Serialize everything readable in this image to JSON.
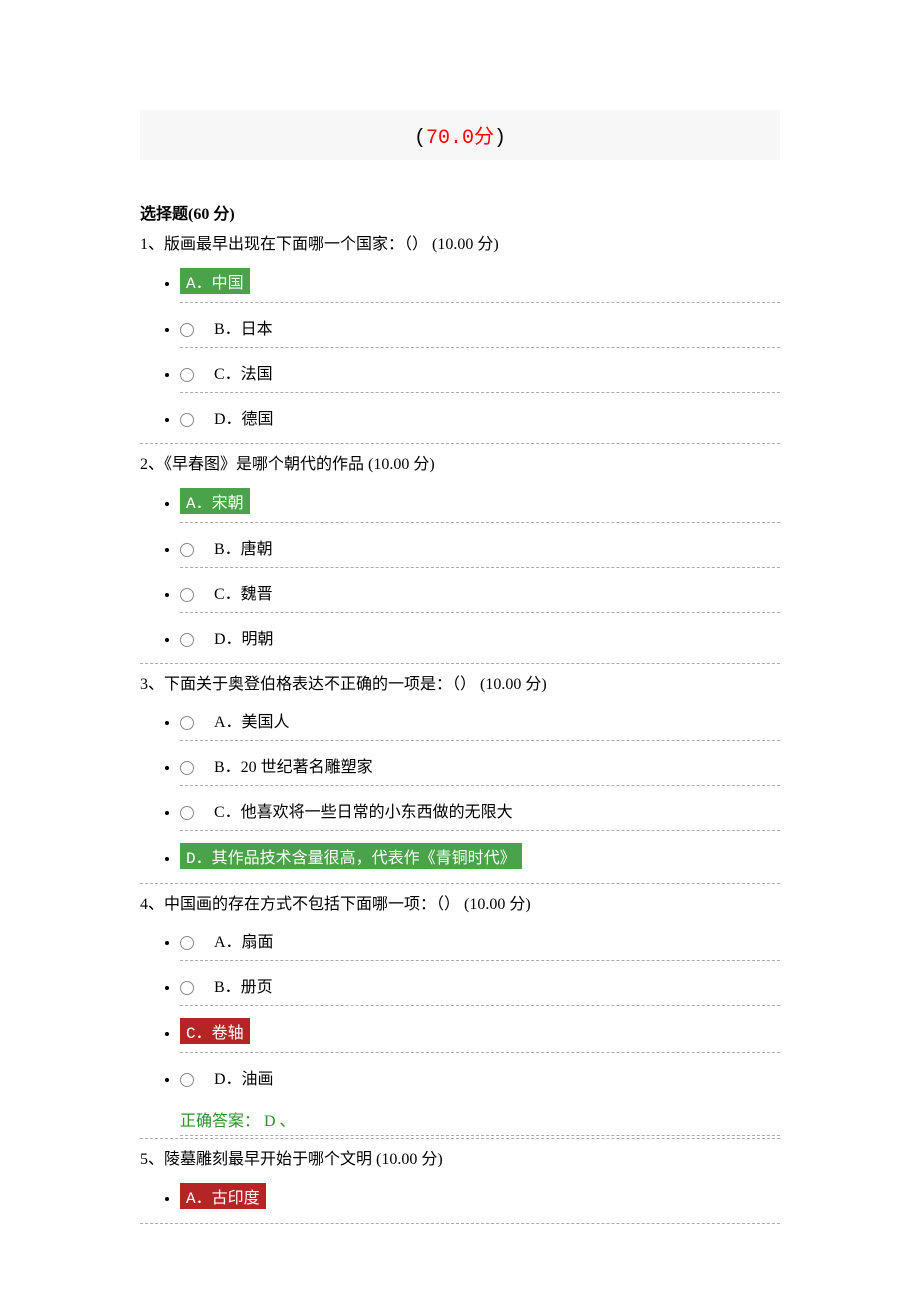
{
  "banner": {
    "open_paren": "(",
    "score": "70.0",
    "fen": "分",
    "close_paren": ")"
  },
  "section_title": "选择题(60 分)",
  "correct_answer_prefix": "正确答案：",
  "colors": {
    "banner_bg": "#f7f7f7",
    "score_color": "#ff0000",
    "green_hl": "#4aa24a",
    "red_hl": "#b52525",
    "correct_text": "#2f8f2f",
    "dash_border": "#aaaaaa"
  },
  "questions": [
    {
      "number": "1、",
      "stem": "版画最早出现在下面哪一个国家：（）  (10.00 分)",
      "options": [
        {
          "letter": "A．",
          "text": "中国",
          "state": "green"
        },
        {
          "letter": "B．",
          "text": "日本",
          "state": "plain"
        },
        {
          "letter": "C．",
          "text": "法国",
          "state": "plain"
        },
        {
          "letter": "D．",
          "text": "德国",
          "state": "plain"
        }
      ]
    },
    {
      "number": "2、",
      "stem": "《早春图》是哪个朝代的作品  (10.00 分)",
      "options": [
        {
          "letter": "A．",
          "text": "宋朝",
          "state": "green"
        },
        {
          "letter": "B．",
          "text": "唐朝",
          "state": "plain"
        },
        {
          "letter": "C．",
          "text": "魏晋",
          "state": "plain"
        },
        {
          "letter": "D．",
          "text": "明朝",
          "state": "plain"
        }
      ]
    },
    {
      "number": "3、",
      "stem": "下面关于奥登伯格表达不正确的一项是：（）  (10.00 分)",
      "options": [
        {
          "letter": "A．",
          "text": "美国人",
          "state": "plain"
        },
        {
          "letter": "B．",
          "text": "20 世纪著名雕塑家",
          "state": "plain"
        },
        {
          "letter": "C．",
          "text": "他喜欢将一些日常的小东西做的无限大",
          "state": "plain"
        },
        {
          "letter": "D．",
          "text": "其作品技术含量很高，代表作《青铜时代》",
          "state": "green"
        }
      ]
    },
    {
      "number": "4、",
      "stem": "中国画的存在方式不包括下面哪一项：（）  (10.00 分)",
      "options": [
        {
          "letter": "A．",
          "text": "扇面",
          "state": "plain"
        },
        {
          "letter": "B．",
          "text": "册页",
          "state": "plain"
        },
        {
          "letter": "C．",
          "text": "卷轴",
          "state": "red"
        },
        {
          "letter": "D．",
          "text": "油画",
          "state": "plain"
        }
      ],
      "correct": " D 、"
    },
    {
      "number": "5、",
      "stem": "陵墓雕刻最早开始于哪个文明  (10.00 分)",
      "options": [
        {
          "letter": "A．",
          "text": "古印度",
          "state": "red"
        }
      ]
    }
  ]
}
